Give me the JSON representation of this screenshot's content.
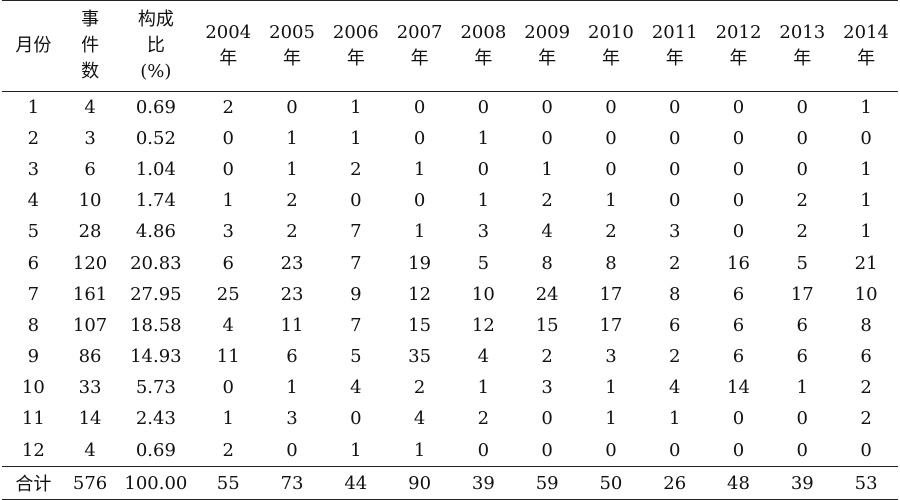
{
  "table": {
    "headers": {
      "month": "月份",
      "count_lines": [
        "事",
        "件",
        "数"
      ],
      "ratio_lines": [
        "构成",
        "比",
        "(%)"
      ],
      "years": [
        {
          "year": "2004",
          "suffix": "年"
        },
        {
          "year": "2005",
          "suffix": "年"
        },
        {
          "year": "2006",
          "suffix": "年"
        },
        {
          "year": "2007",
          "suffix": "年"
        },
        {
          "year": "2008",
          "suffix": "年"
        },
        {
          "year": "2009",
          "suffix": "年"
        },
        {
          "year": "2010",
          "suffix": "年"
        },
        {
          "year": "2011",
          "suffix": "年"
        },
        {
          "year": "2012",
          "suffix": "年"
        },
        {
          "year": "2013",
          "suffix": "年"
        },
        {
          "year": "2014",
          "suffix": "年"
        }
      ]
    },
    "rows": [
      {
        "month": "1",
        "count": "4",
        "ratio": "0.69",
        "years": [
          "2",
          "0",
          "1",
          "0",
          "0",
          "0",
          "0",
          "0",
          "0",
          "0",
          "1"
        ]
      },
      {
        "month": "2",
        "count": "3",
        "ratio": "0.52",
        "years": [
          "0",
          "1",
          "1",
          "0",
          "1",
          "0",
          "0",
          "0",
          "0",
          "0",
          "0"
        ]
      },
      {
        "month": "3",
        "count": "6",
        "ratio": "1.04",
        "years": [
          "0",
          "1",
          "2",
          "1",
          "0",
          "1",
          "0",
          "0",
          "0",
          "0",
          "1"
        ]
      },
      {
        "month": "4",
        "count": "10",
        "ratio": "1.74",
        "years": [
          "1",
          "2",
          "0",
          "0",
          "1",
          "2",
          "1",
          "0",
          "0",
          "2",
          "1"
        ]
      },
      {
        "month": "5",
        "count": "28",
        "ratio": "4.86",
        "years": [
          "3",
          "2",
          "7",
          "1",
          "3",
          "4",
          "2",
          "3",
          "0",
          "2",
          "1"
        ]
      },
      {
        "month": "6",
        "count": "120",
        "ratio": "20.83",
        "years": [
          "6",
          "23",
          "7",
          "19",
          "5",
          "8",
          "8",
          "2",
          "16",
          "5",
          "21"
        ]
      },
      {
        "month": "7",
        "count": "161",
        "ratio": "27.95",
        "years": [
          "25",
          "23",
          "9",
          "12",
          "10",
          "24",
          "17",
          "8",
          "6",
          "17",
          "10"
        ]
      },
      {
        "month": "8",
        "count": "107",
        "ratio": "18.58",
        "years": [
          "4",
          "11",
          "7",
          "15",
          "12",
          "15",
          "17",
          "6",
          "6",
          "6",
          "8"
        ]
      },
      {
        "month": "9",
        "count": "86",
        "ratio": "14.93",
        "years": [
          "11",
          "6",
          "5",
          "35",
          "4",
          "2",
          "3",
          "2",
          "6",
          "6",
          "6"
        ]
      },
      {
        "month": "10",
        "count": "33",
        "ratio": "5.73",
        "years": [
          "0",
          "1",
          "4",
          "2",
          "1",
          "3",
          "1",
          "4",
          "14",
          "1",
          "2"
        ]
      },
      {
        "month": "11",
        "count": "14",
        "ratio": "2.43",
        "years": [
          "1",
          "3",
          "0",
          "4",
          "2",
          "0",
          "1",
          "1",
          "0",
          "0",
          "2"
        ]
      },
      {
        "month": "12",
        "count": "4",
        "ratio": "0.69",
        "years": [
          "2",
          "0",
          "1",
          "1",
          "0",
          "0",
          "0",
          "0",
          "0",
          "0",
          "0"
        ]
      }
    ],
    "total": {
      "label": "合计",
      "count": "576",
      "ratio": "100.00",
      "years": [
        "55",
        "73",
        "44",
        "90",
        "39",
        "59",
        "50",
        "26",
        "48",
        "39",
        "53"
      ]
    }
  }
}
